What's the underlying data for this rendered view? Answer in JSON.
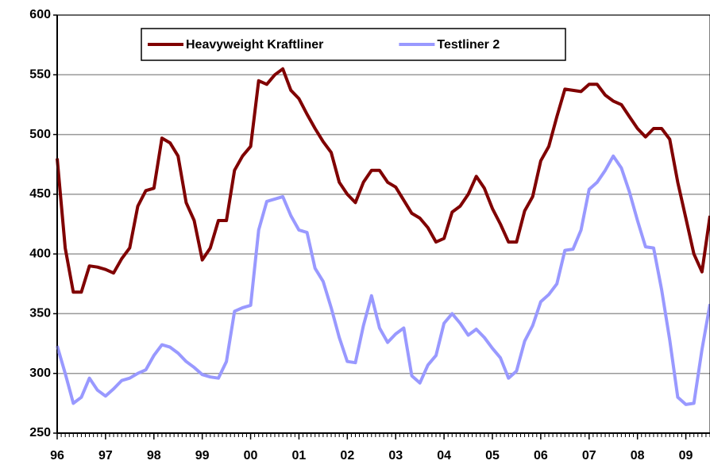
{
  "chart_data": {
    "type": "line",
    "categories": [
      "96",
      null,
      null,
      null,
      null,
      null,
      "97",
      null,
      null,
      null,
      null,
      null,
      "98",
      null,
      null,
      null,
      null,
      null,
      "99",
      null,
      null,
      null,
      null,
      null,
      "00",
      null,
      null,
      null,
      null,
      null,
      "01",
      null,
      null,
      null,
      null,
      null,
      "02",
      null,
      null,
      null,
      null,
      null,
      "03",
      null,
      null,
      null,
      null,
      null,
      "04",
      null,
      null,
      null,
      null,
      null,
      "05",
      null,
      null,
      null,
      null,
      null,
      "06",
      null,
      null,
      null,
      null,
      null,
      "07",
      null,
      null,
      null,
      null,
      null,
      "08",
      null,
      null,
      null,
      null,
      null,
      "09",
      null,
      null,
      null
    ],
    "series": [
      {
        "name": "Heavyweight Kraftliner",
        "color": "#800000",
        "values": [
          480,
          405,
          368,
          368,
          390,
          389,
          387,
          384,
          396,
          405,
          440,
          453,
          455,
          497,
          493,
          482,
          443,
          428,
          395,
          405,
          428,
          428,
          470,
          482,
          490,
          545,
          542,
          550,
          555,
          537,
          530,
          517,
          505,
          494,
          485,
          460,
          450,
          443,
          460,
          470,
          470,
          460,
          456,
          445,
          434,
          430,
          422,
          410,
          413,
          435,
          440,
          450,
          465,
          455,
          438,
          425,
          410,
          410,
          436,
          448,
          478,
          490,
          515,
          538,
          537,
          536,
          542,
          542,
          533,
          528,
          525,
          515,
          505,
          498,
          505,
          505,
          496,
          460,
          430,
          400,
          385,
          432
        ]
      },
      {
        "name": "Testliner 2",
        "color": "#9999ff",
        "values": [
          323,
          300,
          275,
          280,
          296,
          286,
          281,
          287,
          294,
          296,
          300,
          303,
          315,
          324,
          322,
          317,
          310,
          305,
          299,
          297,
          296,
          310,
          352,
          355,
          357,
          420,
          444,
          446,
          448,
          432,
          420,
          418,
          388,
          377,
          355,
          330,
          310,
          309,
          340,
          365,
          338,
          326,
          333,
          338,
          298,
          292,
          307,
          315,
          342,
          350,
          342,
          332,
          337,
          330,
          321,
          313,
          296,
          302,
          327,
          340,
          360,
          366,
          375,
          403,
          404,
          420,
          454,
          460,
          470,
          482,
          472,
          452,
          428,
          406,
          405,
          370,
          328,
          280,
          274,
          275,
          320,
          358
        ]
      }
    ],
    "ylim": [
      250,
      600
    ],
    "yticks": [
      250,
      300,
      350,
      400,
      450,
      500,
      550,
      600
    ],
    "grid": true,
    "legend": "upper center"
  }
}
